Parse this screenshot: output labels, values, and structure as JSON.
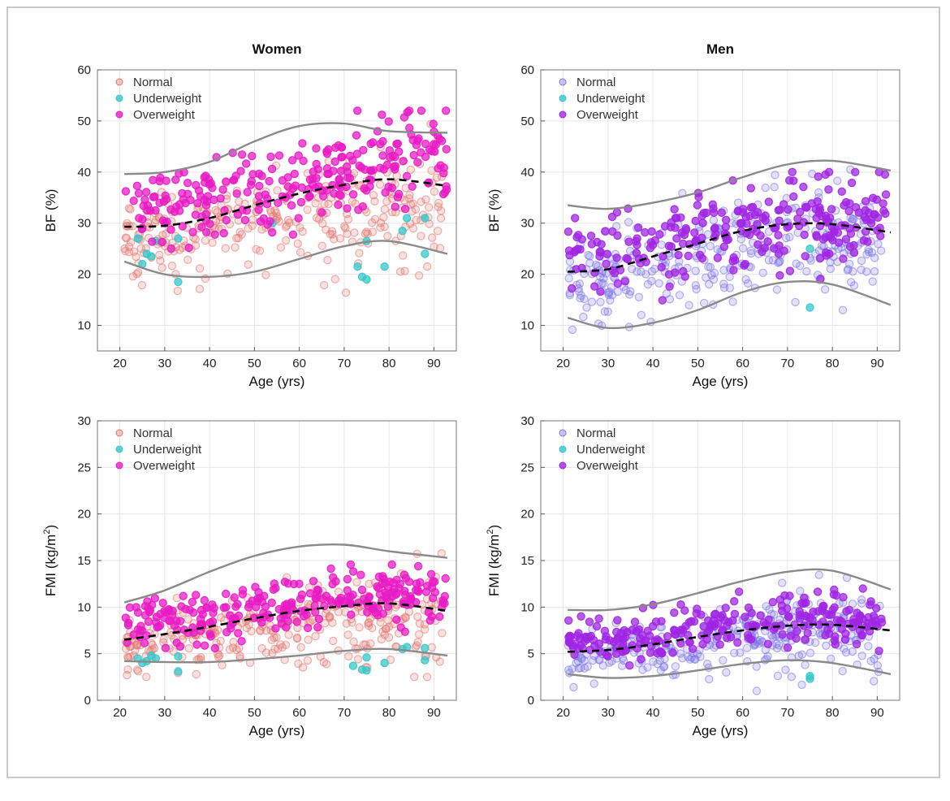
{
  "colors": {
    "women_normal": "#e2756f",
    "men_normal": "#7b74e6",
    "underweight": "#35c7c9",
    "women_overweight": "#e81bc4",
    "men_overweight": "#a025e3",
    "bound_line": "#8a8a8a",
    "trend_line": "#000000",
    "grid": "#e6e6e6"
  },
  "legend": {
    "labels": [
      "Normal",
      "Underweight",
      "Overweight"
    ],
    "placement": "top-left"
  },
  "chart_data": [
    {
      "type": "scatter",
      "title": "Women",
      "xlabel": "Age (yrs)",
      "ylabel": "BF (%)",
      "xlim": [
        15,
        95
      ],
      "ylim": [
        5,
        60
      ],
      "xticks": [
        "20",
        "30",
        "40",
        "50",
        "60",
        "70",
        "80",
        "90"
      ],
      "yticks": [
        "10",
        "20",
        "30",
        "40",
        "50",
        "60"
      ],
      "grid": true,
      "trend_line": {
        "x": [
          21,
          30,
          40,
          50,
          60,
          70,
          80,
          93
        ],
        "y": [
          29.3,
          29.5,
          31.0,
          33.5,
          35.8,
          37.5,
          38.6,
          37.3
        ]
      },
      "upper_bound": {
        "x": [
          21,
          30,
          40,
          50,
          60,
          70,
          80,
          93
        ],
        "y": [
          39.6,
          40.0,
          42.0,
          46.0,
          49.0,
          49.5,
          48.0,
          47.7
        ]
      },
      "lower_bound": {
        "x": [
          21,
          30,
          40,
          50,
          60,
          70,
          80,
          93
        ],
        "y": [
          22.5,
          20.0,
          19.5,
          20.5,
          23.0,
          25.5,
          26.5,
          24.0
        ]
      },
      "series": [
        {
          "name": "Normal",
          "n": 300,
          "x_range": [
            21,
            92
          ],
          "center": {
            "x": [
              21,
              40,
              60,
              80,
              92
            ],
            "y": [
              27,
              28,
              31,
              33,
              33
            ]
          },
          "spread": [
            4,
            6
          ],
          "y_clip": [
            13,
            57
          ]
        },
        {
          "name": "Underweight",
          "points": [
            [
              24,
              27
            ],
            [
              25,
              22
            ],
            [
              26,
              24
            ],
            [
              27,
              23.5
            ],
            [
              28,
              26.5
            ],
            [
              33,
              18.5
            ],
            [
              33,
              27
            ],
            [
              54,
              30
            ],
            [
              73,
              21.5
            ],
            [
              74,
              19.5
            ],
            [
              75,
              19
            ],
            [
              75,
              26.5
            ],
            [
              79,
              21.5
            ],
            [
              83,
              28.5
            ],
            [
              84,
              31
            ],
            [
              88,
              24
            ],
            [
              88,
              31
            ]
          ]
        },
        {
          "name": "Overweight",
          "n": 270,
          "x_range": [
            21,
            93
          ],
          "center": {
            "x": [
              21,
              40,
              60,
              80,
              93
            ],
            "y": [
              33,
              34,
              38,
              42,
              42
            ]
          },
          "spread": [
            3.5,
            5
          ],
          "y_clip": [
            14,
            52
          ]
        }
      ]
    },
    {
      "type": "scatter",
      "title": "Men",
      "xlabel": "Age (yrs)",
      "ylabel": "BF (%)",
      "xlim": [
        15,
        95
      ],
      "ylim": [
        5,
        60
      ],
      "xticks": [
        "20",
        "30",
        "40",
        "50",
        "60",
        "70",
        "80",
        "90"
      ],
      "yticks": [
        "10",
        "20",
        "30",
        "40",
        "50",
        "60"
      ],
      "grid": true,
      "trend_line": {
        "x": [
          21,
          30,
          40,
          50,
          60,
          70,
          80,
          93
        ],
        "y": [
          20.5,
          21.0,
          23.5,
          26.0,
          28.5,
          29.8,
          29.8,
          28.2
        ]
      },
      "upper_bound": {
        "x": [
          21,
          30,
          40,
          50,
          60,
          70,
          80,
          93
        ],
        "y": [
          33.5,
          32.8,
          34.0,
          36.0,
          39.0,
          41.5,
          42.2,
          40.3
        ]
      },
      "lower_bound": {
        "x": [
          21,
          30,
          40,
          50,
          60,
          70,
          80,
          93
        ],
        "y": [
          11.5,
          9.5,
          10.5,
          13.0,
          16.5,
          18.5,
          18.0,
          14.0
        ]
      },
      "series": [
        {
          "name": "Normal",
          "n": 300,
          "x_range": [
            21,
            91
          ],
          "center": {
            "x": [
              21,
              40,
              60,
              80,
              91
            ],
            "y": [
              18,
              21,
              26,
              28,
              27
            ]
          },
          "spread": [
            4,
            6
          ],
          "y_clip": [
            5,
            48
          ]
        },
        {
          "name": "Underweight",
          "points": [
            [
              75,
              13.5
            ],
            [
              75,
              25
            ]
          ]
        },
        {
          "name": "Overweight",
          "n": 260,
          "x_range": [
            21,
            92
          ],
          "center": {
            "x": [
              21,
              40,
              60,
              80,
              92
            ],
            "y": [
              24,
              26,
              29,
              31,
              30
            ]
          },
          "spread": [
            3.5,
            5
          ],
          "y_clip": [
            10,
            40
          ]
        }
      ]
    },
    {
      "type": "scatter",
      "title": "",
      "xlabel": "Age (yrs)",
      "ylabel": "FMI (kg/m2)",
      "xlim": [
        15,
        95
      ],
      "ylim": [
        0,
        30
      ],
      "xticks": [
        "20",
        "30",
        "40",
        "50",
        "60",
        "70",
        "80",
        "90"
      ],
      "yticks": [
        "0",
        "5",
        "10",
        "15",
        "20",
        "25",
        "30"
      ],
      "grid": true,
      "trend_line": {
        "x": [
          21,
          30,
          40,
          50,
          60,
          70,
          80,
          93
        ],
        "y": [
          6.5,
          7.1,
          7.9,
          8.8,
          9.6,
          10.1,
          10.4,
          9.6
        ]
      },
      "upper_bound": {
        "x": [
          21,
          30,
          40,
          50,
          60,
          70,
          80,
          93
        ],
        "y": [
          10.5,
          11.8,
          13.8,
          15.5,
          16.5,
          16.7,
          16.0,
          15.3
        ]
      },
      "lower_bound": {
        "x": [
          21,
          30,
          40,
          50,
          60,
          70,
          80,
          93
        ],
        "y": [
          4.2,
          4.1,
          4.1,
          4.4,
          4.8,
          5.3,
          5.5,
          4.8
        ]
      },
      "series": [
        {
          "name": "Normal",
          "n": 300,
          "x_range": [
            21,
            92
          ],
          "center": {
            "x": [
              21,
              40,
              60,
              80,
              92
            ],
            "y": [
              6,
              6.8,
              8,
              8.8,
              8
            ]
          },
          "spread": [
            1.5,
            2.8
          ],
          "y_clip": [
            2.5,
            24.8
          ]
        },
        {
          "name": "Underweight",
          "points": [
            [
              24,
              4.5
            ],
            [
              25,
              4
            ],
            [
              26,
              4.2
            ],
            [
              27,
              4.8
            ],
            [
              28,
              4.5
            ],
            [
              33,
              3.1
            ],
            [
              33,
              4.7
            ],
            [
              72,
              3.7
            ],
            [
              74,
              3.3
            ],
            [
              75,
              3.2
            ],
            [
              75,
              4.6
            ],
            [
              79,
              4
            ],
            [
              83,
              5.5
            ],
            [
              84,
              5.7
            ],
            [
              88,
              4.3
            ],
            [
              88,
              5.6
            ]
          ]
        },
        {
          "name": "Overweight",
          "n": 270,
          "x_range": [
            21,
            93
          ],
          "center": {
            "x": [
              21,
              40,
              60,
              80,
              93
            ],
            "y": [
              8.5,
              9,
              10.5,
              11.5,
              11
            ]
          },
          "spread": [
            1.2,
            1.8
          ],
          "y_clip": [
            4,
            16
          ]
        }
      ]
    },
    {
      "type": "scatter",
      "title": "",
      "xlabel": "Age (yrs)",
      "ylabel": "FMI (kg/m2)",
      "xlim": [
        15,
        95
      ],
      "ylim": [
        0,
        30
      ],
      "xticks": [
        "20",
        "30",
        "40",
        "50",
        "60",
        "70",
        "80",
        "90"
      ],
      "yticks": [
        "0",
        "5",
        "10",
        "15",
        "20",
        "25",
        "30"
      ],
      "grid": true,
      "trend_line": {
        "x": [
          21,
          30,
          40,
          50,
          60,
          70,
          80,
          93
        ],
        "y": [
          5.2,
          5.4,
          6.0,
          6.8,
          7.5,
          8.0,
          8.1,
          7.5
        ]
      },
      "upper_bound": {
        "x": [
          21,
          30,
          40,
          50,
          60,
          70,
          80,
          93
        ],
        "y": [
          9.7,
          9.7,
          10.3,
          11.5,
          12.8,
          13.8,
          13.9,
          11.9
        ]
      },
      "lower_bound": {
        "x": [
          21,
          30,
          40,
          50,
          60,
          70,
          80,
          93
        ],
        "y": [
          2.8,
          2.4,
          2.6,
          3.2,
          3.9,
          4.3,
          4.0,
          2.8
        ]
      },
      "series": [
        {
          "name": "Normal",
          "n": 300,
          "x_range": [
            21,
            91
          ],
          "center": {
            "x": [
              21,
              40,
              60,
              80,
              91
            ],
            "y": [
              4.5,
              5.5,
              7,
              8,
              7
            ]
          },
          "spread": [
            1.3,
            2.5
          ],
          "y_clip": [
            1,
            20.2
          ]
        },
        {
          "name": "Underweight",
          "points": [
            [
              75,
              2.3
            ],
            [
              75,
              2.6
            ]
          ]
        },
        {
          "name": "Overweight",
          "n": 260,
          "x_range": [
            21,
            92
          ],
          "center": {
            "x": [
              21,
              40,
              60,
              80,
              92
            ],
            "y": [
              6.5,
              7,
              8,
              9,
              8.5
            ]
          },
          "spread": [
            1.1,
            1.6
          ],
          "y_clip": [
            3.5,
            12
          ]
        }
      ]
    }
  ]
}
